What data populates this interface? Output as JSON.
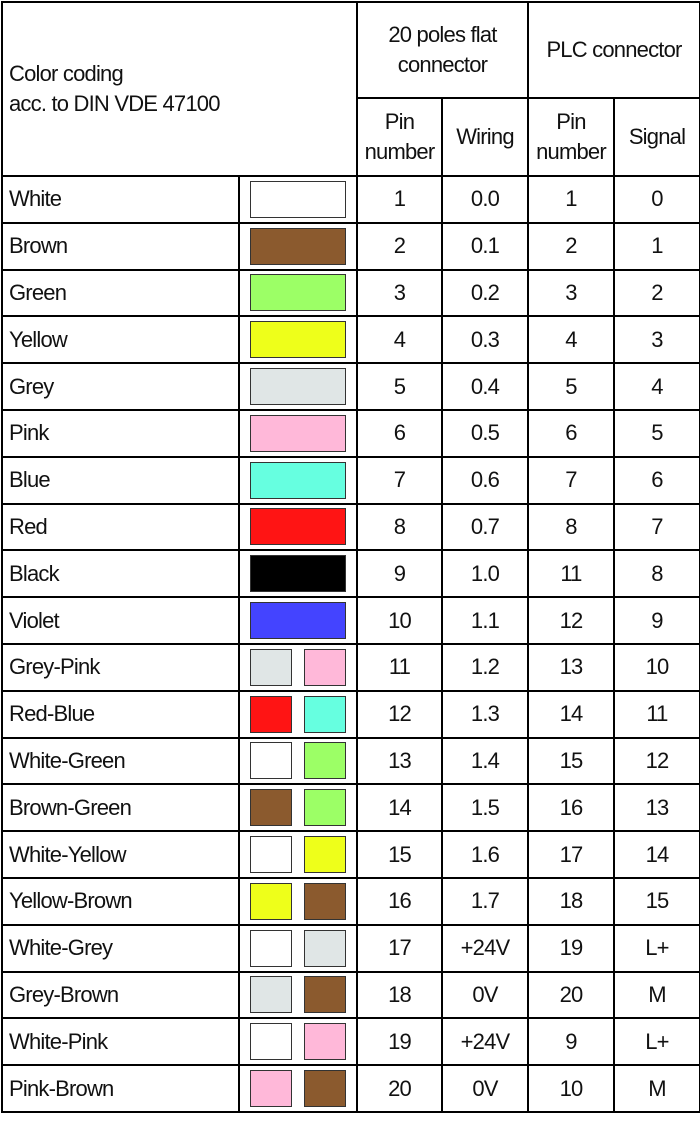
{
  "header": {
    "color_coding": "Color coding",
    "standard": "acc. to DIN VDE 47100",
    "flat_connector": "20 poles flat connector",
    "plc_connector": "PLC connector",
    "pin_number": "Pin number",
    "wiring": "Wiring",
    "plc_pin_number": "Pin number",
    "signal": "Signal"
  },
  "rows": [
    {
      "name": "White",
      "colors": [
        "#ffffff"
      ],
      "pin": "1",
      "wiring": "0.0",
      "plc_pin": "1",
      "signal": "0"
    },
    {
      "name": "Brown",
      "colors": [
        "#8b5a2e"
      ],
      "pin": "2",
      "wiring": "0.1",
      "plc_pin": "2",
      "signal": "1"
    },
    {
      "name": "Green",
      "colors": [
        "#9cff66"
      ],
      "pin": "3",
      "wiring": "0.2",
      "plc_pin": "3",
      "signal": "2"
    },
    {
      "name": "Yellow",
      "colors": [
        "#eeff1a"
      ],
      "pin": "4",
      "wiring": "0.3",
      "plc_pin": "4",
      "signal": "3"
    },
    {
      "name": "Grey",
      "colors": [
        "#e0e6e6"
      ],
      "pin": "5",
      "wiring": "0.4",
      "plc_pin": "5",
      "signal": "4"
    },
    {
      "name": "Pink",
      "colors": [
        "#ffb8d9"
      ],
      "pin": "6",
      "wiring": "0.5",
      "plc_pin": "6",
      "signal": "5"
    },
    {
      "name": "Blue",
      "colors": [
        "#66ffe0"
      ],
      "pin": "7",
      "wiring": "0.6",
      "plc_pin": "7",
      "signal": "6"
    },
    {
      "name": "Red",
      "colors": [
        "#ff1414"
      ],
      "pin": "8",
      "wiring": "0.7",
      "plc_pin": "8",
      "signal": "7"
    },
    {
      "name": "Black",
      "colors": [
        "#000000"
      ],
      "pin": "9",
      "wiring": "1.0",
      "plc_pin": "11",
      "signal": "8"
    },
    {
      "name": "Violet",
      "colors": [
        "#4444ff"
      ],
      "pin": "10",
      "wiring": "1.1",
      "plc_pin": "12",
      "signal": "9"
    },
    {
      "name": "Grey-Pink",
      "colors": [
        "#e0e6e6",
        "#ffb8d9"
      ],
      "pin": "11",
      "wiring": "1.2",
      "plc_pin": "13",
      "signal": "10"
    },
    {
      "name": "Red-Blue",
      "colors": [
        "#ff1414",
        "#66ffe0"
      ],
      "pin": "12",
      "wiring": "1.3",
      "plc_pin": "14",
      "signal": "11"
    },
    {
      "name": "White-Green",
      "colors": [
        "#ffffff",
        "#9cff66"
      ],
      "pin": "13",
      "wiring": "1.4",
      "plc_pin": "15",
      "signal": "12"
    },
    {
      "name": "Brown-Green",
      "colors": [
        "#8b5a2e",
        "#9cff66"
      ],
      "pin": "14",
      "wiring": "1.5",
      "plc_pin": "16",
      "signal": "13"
    },
    {
      "name": "White-Yellow",
      "colors": [
        "#ffffff",
        "#eeff1a"
      ],
      "pin": "15",
      "wiring": "1.6",
      "plc_pin": "17",
      "signal": "14"
    },
    {
      "name": "Yellow-Brown",
      "colors": [
        "#eeff1a",
        "#8b5a2e"
      ],
      "pin": "16",
      "wiring": "1.7",
      "plc_pin": "18",
      "signal": "15"
    },
    {
      "name": "White-Grey",
      "colors": [
        "#ffffff",
        "#e0e6e6"
      ],
      "pin": "17",
      "wiring": "+24V",
      "plc_pin": "19",
      "signal": "L+"
    },
    {
      "name": "Grey-Brown",
      "colors": [
        "#e0e6e6",
        "#8b5a2e"
      ],
      "pin": "18",
      "wiring": "0V",
      "plc_pin": "20",
      "signal": "M"
    },
    {
      "name": "White-Pink",
      "colors": [
        "#ffffff",
        "#ffb8d9"
      ],
      "pin": "19",
      "wiring": "+24V",
      "plc_pin": "9",
      "signal": "L+"
    },
    {
      "name": "Pink-Brown",
      "colors": [
        "#ffb8d9",
        "#8b5a2e"
      ],
      "pin": "20",
      "wiring": "0V",
      "plc_pin": "10",
      "signal": "M"
    }
  ]
}
